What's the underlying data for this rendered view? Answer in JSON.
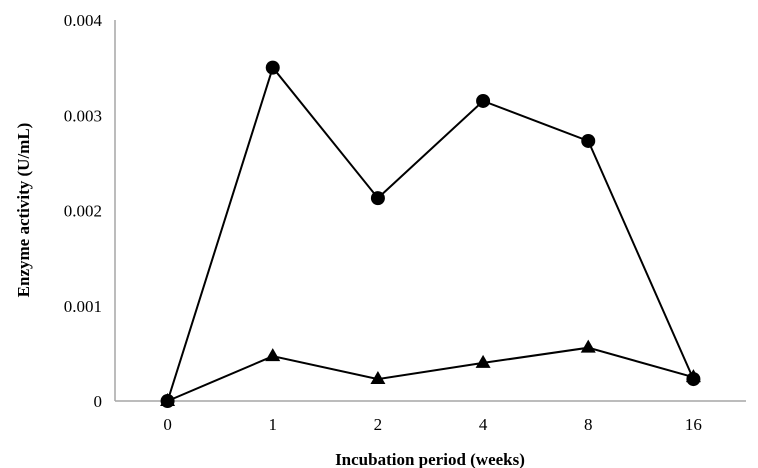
{
  "chart_data": {
    "type": "line",
    "title": "",
    "xlabel": "Incubation period (weeks)",
    "ylabel": "Enzyme activity (U/mL)",
    "categories": [
      "0",
      "1",
      "2",
      "4",
      "8",
      "16"
    ],
    "ylim": [
      0,
      0.004
    ],
    "yticks": [
      "0",
      "0.001",
      "0.002",
      "0.003",
      "0.004"
    ],
    "grid": false,
    "legend": "none",
    "series": [
      {
        "marker": "circle",
        "color": "#000000",
        "values": [
          0.0,
          0.0035,
          0.00213,
          0.00315,
          0.00273,
          0.00023
        ]
      },
      {
        "marker": "triangle",
        "color": "#000000",
        "values": [
          0.0,
          0.00047,
          0.00023,
          0.0004,
          0.00056,
          0.00025
        ]
      }
    ]
  }
}
